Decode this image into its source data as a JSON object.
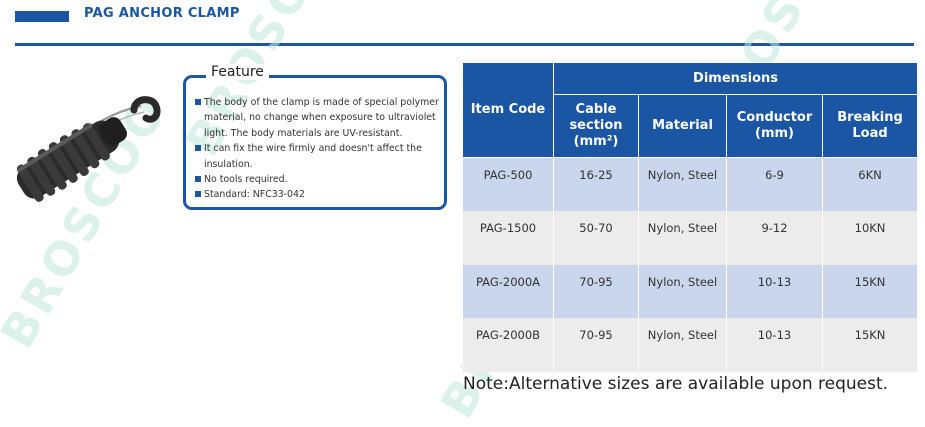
{
  "header": {
    "title": "PAG ANCHOR CLAMP"
  },
  "watermark": {
    "text": "BROSCOO"
  },
  "feature": {
    "title": "Feature",
    "items": [
      "The body of the clamp is made of special polymer material, no change when exposure to ultraviolet light. The body materials are UV-resistant.",
      "It can fix the wire firmly and doesn't affect the insulation.",
      "No tools required.",
      "Standard: NFC33-042"
    ]
  },
  "table": {
    "headers": {
      "item_code": "Item Code",
      "dimensions": "Dimensions",
      "cable_section": "Cable section (mm²)",
      "material": "Material",
      "conductor": "Conductor (mm)",
      "breaking_load": "Breaking Load"
    },
    "rows": [
      {
        "code": "PAG-500",
        "cable_section": "16-25",
        "material": "Nylon, Steel",
        "conductor": "6-9",
        "breaking_load": "6KN"
      },
      {
        "code": "PAG-1500",
        "cable_section": "50-70",
        "material": "Nylon, Steel",
        "conductor": "9-12",
        "breaking_load": "10KN"
      },
      {
        "code": "PAG-2000A",
        "cable_section": "70-95",
        "material": "Nylon, Steel",
        "conductor": "10-13",
        "breaking_load": "15KN"
      },
      {
        "code": "PAG-2000B",
        "cable_section": "70-95",
        "material": "Nylon, Steel",
        "conductor": "10-13",
        "breaking_load": "15KN"
      }
    ]
  },
  "note": "Note:Alternative sizes are available upon request.",
  "colors": {
    "brand_blue": "#1b56a4",
    "row_shade": "#c9d6eb",
    "row_plain": "#ececec",
    "watermark": "#bfe8dc"
  }
}
